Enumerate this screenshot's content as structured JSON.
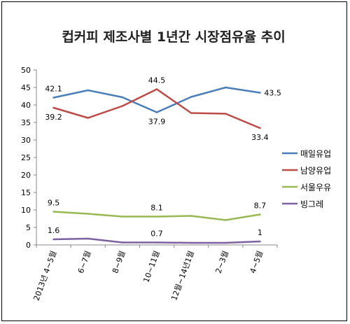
{
  "chart_data": {
    "type": "line",
    "title": "컵커피 제조사별 1년간 시장점유율 추이",
    "categories": [
      "2013년 4~5월",
      "6~7월",
      "8~9월",
      "10~11월",
      "12월~14년1월",
      "2~3월",
      "4~5월"
    ],
    "ylim": [
      0,
      50
    ],
    "yticks": [
      "0",
      "5",
      "10",
      "15",
      "20",
      "25",
      "30",
      "35",
      "40",
      "45",
      "50"
    ],
    "grid": false,
    "legend_position": "right",
    "series": [
      {
        "name": "매일유업",
        "color": "#4a7ebb",
        "values": [
          42.1,
          44.2,
          42.2,
          37.9,
          42.3,
          45.0,
          43.5
        ]
      },
      {
        "name": "남양유업",
        "color": "#be4b48",
        "values": [
          39.2,
          36.3,
          39.7,
          44.5,
          37.7,
          37.5,
          33.4
        ]
      },
      {
        "name": "서울우유",
        "color": "#98b954",
        "values": [
          9.5,
          8.9,
          8.1,
          8.1,
          8.3,
          7.1,
          8.7
        ]
      },
      {
        "name": "빙그레",
        "color": "#7d60a0",
        "values": [
          1.6,
          1.8,
          0.7,
          0.7,
          0.6,
          0.6,
          1.0
        ]
      }
    ],
    "data_labels": [
      {
        "series": 0,
        "index": 0,
        "text": "42.1",
        "pos": "above"
      },
      {
        "series": 0,
        "index": 6,
        "text": "43.5",
        "pos": "right"
      },
      {
        "series": 0,
        "index": 3,
        "text": "37.9",
        "pos": "below"
      },
      {
        "series": 1,
        "index": 0,
        "text": "39.2",
        "pos": "below"
      },
      {
        "series": 1,
        "index": 3,
        "text": "44.5",
        "pos": "above"
      },
      {
        "series": 1,
        "index": 6,
        "text": "33.4",
        "pos": "below"
      },
      {
        "series": 2,
        "index": 0,
        "text": "9.5",
        "pos": "above"
      },
      {
        "series": 2,
        "index": 3,
        "text": "8.1",
        "pos": "above"
      },
      {
        "series": 2,
        "index": 6,
        "text": "8.7",
        "pos": "above"
      },
      {
        "series": 3,
        "index": 0,
        "text": "1.6",
        "pos": "above"
      },
      {
        "series": 3,
        "index": 3,
        "text": "0.7",
        "pos": "above"
      },
      {
        "series": 3,
        "index": 6,
        "text": "1",
        "pos": "above"
      }
    ]
  }
}
